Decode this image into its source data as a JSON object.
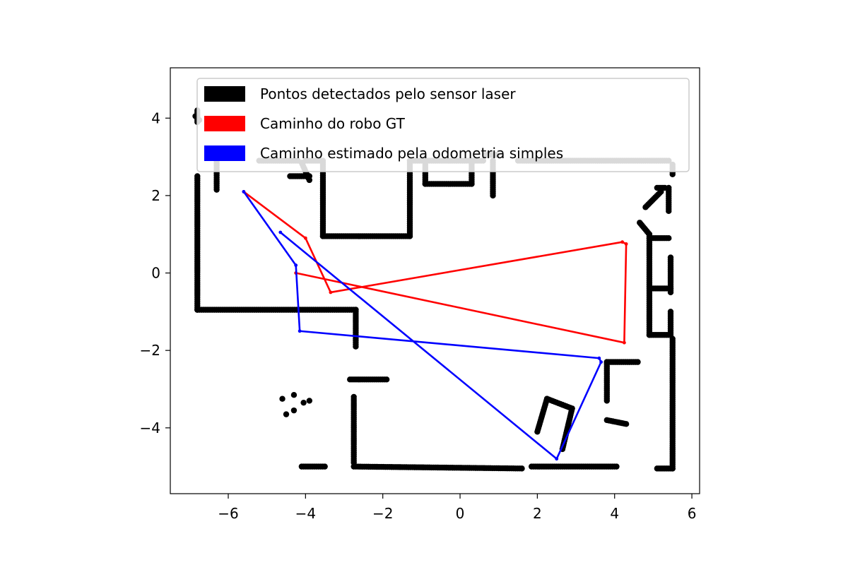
{
  "chart_data": {
    "type": "scatter",
    "title": "",
    "xlabel": "",
    "ylabel": "",
    "xlim": [
      -7.5,
      6.2
    ],
    "ylim": [
      -5.7,
      5.3
    ],
    "grid": false,
    "legend_position": "top",
    "xticks": [
      {
        "value": -6,
        "label": "−6"
      },
      {
        "value": -4,
        "label": "−4"
      },
      {
        "value": -2,
        "label": "−2"
      },
      {
        "value": 0,
        "label": "0"
      },
      {
        "value": 2,
        "label": "2"
      },
      {
        "value": 4,
        "label": "4"
      },
      {
        "value": 6,
        "label": "6"
      }
    ],
    "yticks": [
      {
        "value": -4,
        "label": "−4"
      },
      {
        "value": -2,
        "label": "−2"
      },
      {
        "value": 0,
        "label": "0"
      },
      {
        "value": 2,
        "label": "2"
      },
      {
        "value": 4,
        "label": "4"
      }
    ],
    "series": [
      {
        "name": "Pontos detectados pelo sensor laser",
        "color": "#000000",
        "kind": "points",
        "segments": [
          [
            [
              -6.8,
              2.5
            ],
            [
              -6.8,
              -0.95
            ]
          ],
          [
            [
              -6.8,
              -0.95
            ],
            [
              -2.7,
              -0.95
            ]
          ],
          [
            [
              -2.7,
              -0.95
            ],
            [
              -2.7,
              -1.9
            ]
          ],
          [
            [
              -6.8,
              4.2
            ],
            [
              -6.8,
              3.9
            ]
          ],
          [
            [
              -6.3,
              3.1
            ],
            [
              -6.3,
              2.15
            ]
          ],
          [
            [
              -5.2,
              2.9
            ],
            [
              -4.2,
              2.9
            ]
          ],
          [
            [
              -4.0,
              2.9
            ],
            [
              -3.6,
              2.9
            ]
          ],
          [
            [
              -3.55,
              2.9
            ],
            [
              -3.55,
              0.95
            ]
          ],
          [
            [
              -3.55,
              0.95
            ],
            [
              -1.3,
              0.95
            ]
          ],
          [
            [
              -1.3,
              0.95
            ],
            [
              -1.3,
              2.9
            ]
          ],
          [
            [
              -1.3,
              2.9
            ],
            [
              -0.9,
              2.9
            ]
          ],
          [
            [
              -4.1,
              2.85
            ],
            [
              -3.9,
              2.4
            ]
          ],
          [
            [
              -4.4,
              2.5
            ],
            [
              -3.9,
              2.5
            ]
          ],
          [
            [
              -0.9,
              2.9
            ],
            [
              -0.9,
              2.3
            ]
          ],
          [
            [
              -0.9,
              2.3
            ],
            [
              0.3,
              2.3
            ]
          ],
          [
            [
              0.3,
              2.3
            ],
            [
              0.3,
              2.9
            ]
          ],
          [
            [
              -0.9,
              2.9
            ],
            [
              0.6,
              2.9
            ]
          ],
          [
            [
              0.65,
              3.05
            ],
            [
              0.95,
              3.05
            ]
          ],
          [
            [
              0.85,
              2.9
            ],
            [
              0.85,
              2.0
            ]
          ],
          [
            [
              1.5,
              2.9
            ],
            [
              5.4,
              2.9
            ]
          ],
          [
            [
              5.5,
              2.8
            ],
            [
              5.5,
              2.55
            ]
          ],
          [
            [
              4.8,
              1.7
            ],
            [
              5.2,
              2.1
            ]
          ],
          [
            [
              5.1,
              2.2
            ],
            [
              5.3,
              2.2
            ]
          ],
          [
            [
              5.4,
              2.2
            ],
            [
              5.4,
              1.6
            ]
          ],
          [
            [
              4.65,
              1.3
            ],
            [
              4.9,
              1.0
            ]
          ],
          [
            [
              4.9,
              1.0
            ],
            [
              4.9,
              -1.6
            ]
          ],
          [
            [
              4.9,
              0.9
            ],
            [
              5.4,
              0.9
            ]
          ],
          [
            [
              5.45,
              0.4
            ],
            [
              5.45,
              -0.5
            ]
          ],
          [
            [
              4.95,
              -0.4
            ],
            [
              5.45,
              -0.4
            ]
          ],
          [
            [
              5.45,
              -1.0
            ],
            [
              5.45,
              -1.6
            ]
          ],
          [
            [
              4.9,
              -1.6
            ],
            [
              5.4,
              -1.6
            ]
          ],
          [
            [
              5.5,
              -1.7
            ],
            [
              5.5,
              -5.05
            ]
          ],
          [
            [
              5.1,
              -5.05
            ],
            [
              5.5,
              -5.05
            ]
          ],
          [
            [
              3.8,
              -2.3
            ],
            [
              4.6,
              -2.3
            ]
          ],
          [
            [
              3.8,
              -2.3
            ],
            [
              3.8,
              -3.3
            ]
          ],
          [
            [
              3.8,
              -3.8
            ],
            [
              4.3,
              -3.9
            ]
          ],
          [
            [
              2.0,
              -4.1
            ],
            [
              2.25,
              -3.25
            ]
          ],
          [
            [
              2.25,
              -3.25
            ],
            [
              2.9,
              -3.5
            ]
          ],
          [
            [
              2.9,
              -3.5
            ],
            [
              2.65,
              -4.55
            ]
          ],
          [
            [
              -2.85,
              -2.75
            ],
            [
              -1.9,
              -2.75
            ]
          ],
          [
            [
              -2.75,
              -3.2
            ],
            [
              -2.75,
              -4.9
            ]
          ],
          [
            [
              -2.75,
              -5.0
            ],
            [
              1.6,
              -5.05
            ]
          ],
          [
            [
              1.85,
              -5.0
            ],
            [
              4.05,
              -5.0
            ]
          ],
          [
            [
              -4.1,
              -5.0
            ],
            [
              -3.5,
              -5.0
            ]
          ]
        ],
        "dots": [
          [
            -4.6,
            -3.25
          ],
          [
            -4.3,
            -3.15
          ],
          [
            -4.05,
            -3.35
          ],
          [
            -4.5,
            -3.65
          ],
          [
            -4.3,
            -3.55
          ],
          [
            -3.9,
            -3.3
          ],
          [
            -6.85,
            4.05
          ],
          [
            -6.75,
            3.95
          ]
        ]
      },
      {
        "name": "Caminho do robo GT",
        "color": "#ff0000",
        "kind": "path",
        "points": [
          [
            -5.6,
            2.1
          ],
          [
            -4.0,
            0.9
          ],
          [
            -3.35,
            -0.5
          ],
          [
            4.2,
            0.8
          ],
          [
            4.3,
            0.75
          ],
          [
            4.25,
            -1.8
          ],
          [
            -4.25,
            0.0
          ]
        ]
      },
      {
        "name": "Caminho estimado pela odometria simples",
        "color": "#0000ff",
        "kind": "path",
        "points": [
          [
            -5.6,
            2.1
          ],
          [
            -4.25,
            0.2
          ],
          [
            -4.15,
            -1.5
          ],
          [
            3.6,
            -2.2
          ],
          [
            3.65,
            -2.3
          ],
          [
            2.5,
            -4.8
          ],
          [
            -4.65,
            1.05
          ]
        ]
      }
    ]
  }
}
